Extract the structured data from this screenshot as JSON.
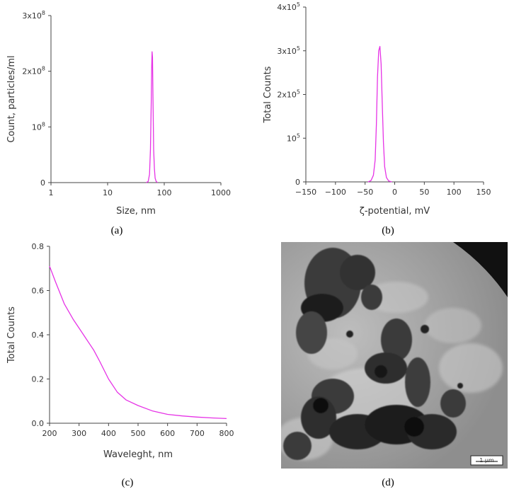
{
  "chart_data": [
    {
      "panel": "(a)",
      "type": "line",
      "xlabel": "Size, nm",
      "ylabel": "Count, particles/ml",
      "x_scale": "log",
      "xlim": [
        1,
        1000
      ],
      "ylim": [
        0,
        300000000
      ],
      "x_tick_labels": [
        "1",
        "10",
        "100",
        "1000"
      ],
      "x_tick_values": [
        1,
        10,
        100,
        1000
      ],
      "y_tick_values": [
        0,
        100000000,
        200000000,
        300000000
      ],
      "y_tick_labels": [
        {
          "base": "0",
          "exp": ""
        },
        {
          "base": "10",
          "exp": "8"
        },
        {
          "base": "2x10",
          "exp": "8"
        },
        {
          "base": "3x10",
          "exp": "8"
        }
      ],
      "line_color": "#e633e6",
      "series": [
        {
          "x": [
            48,
            52,
            55,
            57,
            59,
            60,
            61,
            62,
            63,
            64,
            65,
            67,
            69,
            72,
            76
          ],
          "y": [
            0,
            2000000,
            15000000,
            60000000,
            150000000,
            210000000,
            235000000,
            225000000,
            170000000,
            110000000,
            60000000,
            25000000,
            8000000,
            2000000,
            0
          ]
        }
      ]
    },
    {
      "panel": "(b)",
      "type": "line",
      "xlabel": "ζ-potential, mV",
      "ylabel": "Total Counts",
      "xlim": [
        -150,
        150
      ],
      "ylim": [
        0,
        400000
      ],
      "x_tick_labels": [
        "−150",
        "−100",
        "−50",
        "0",
        "50",
        "100",
        "150"
      ],
      "x_tick_values": [
        -150,
        -100,
        -50,
        0,
        50,
        100,
        150
      ],
      "y_tick_values": [
        0,
        100000,
        200000,
        300000,
        400000
      ],
      "y_tick_labels": [
        {
          "base": "0",
          "exp": ""
        },
        {
          "base": "10",
          "exp": "5"
        },
        {
          "base": "2x10",
          "exp": "5"
        },
        {
          "base": "3x10",
          "exp": "5"
        },
        {
          "base": "4x10",
          "exp": "5"
        }
      ],
      "line_color": "#e633e6",
      "series": [
        {
          "x": [
            -45,
            -40,
            -36,
            -33,
            -31,
            -29,
            -27,
            -25,
            -23,
            -21,
            -19,
            -17,
            -14,
            -10,
            -5
          ],
          "y": [
            0,
            3000,
            15000,
            50000,
            130000,
            240000,
            300000,
            310000,
            270000,
            180000,
            90000,
            35000,
            10000,
            2000,
            0
          ]
        }
      ]
    },
    {
      "panel": "(c)",
      "type": "line",
      "xlabel": "Waveleght, nm",
      "ylabel": "Total Counts",
      "xlim": [
        200,
        800
      ],
      "ylim": [
        0,
        0.8
      ],
      "x_tick_labels": [
        "200",
        "300",
        "400",
        "500",
        "600",
        "700",
        "800"
      ],
      "x_tick_values": [
        200,
        300,
        400,
        500,
        600,
        700,
        800
      ],
      "y_tick_values": [
        0,
        0.2,
        0.4,
        0.6,
        0.8
      ],
      "y_tick_labels": [
        {
          "base": "0.0",
          "exp": ""
        },
        {
          "base": "0.2",
          "exp": ""
        },
        {
          "base": "0.4",
          "exp": ""
        },
        {
          "base": "0.6",
          "exp": ""
        },
        {
          "base": "0.8",
          "exp": ""
        }
      ],
      "line_color": "#e633e6",
      "series": [
        {
          "x": [
            200,
            220,
            250,
            280,
            300,
            320,
            350,
            370,
            400,
            430,
            460,
            500,
            550,
            600,
            650,
            700,
            750,
            800
          ],
          "y": [
            0.71,
            0.64,
            0.54,
            0.47,
            0.43,
            0.39,
            0.33,
            0.28,
            0.2,
            0.14,
            0.105,
            0.08,
            0.055,
            0.04,
            0.033,
            0.028,
            0.024,
            0.021
          ]
        }
      ]
    }
  ],
  "panels": {
    "a": {
      "caption": "(a)"
    },
    "b": {
      "caption": "(b)"
    },
    "c": {
      "caption": "(c)"
    },
    "d": {
      "caption": "(d)",
      "scale_bar_label": "1 µm"
    }
  }
}
